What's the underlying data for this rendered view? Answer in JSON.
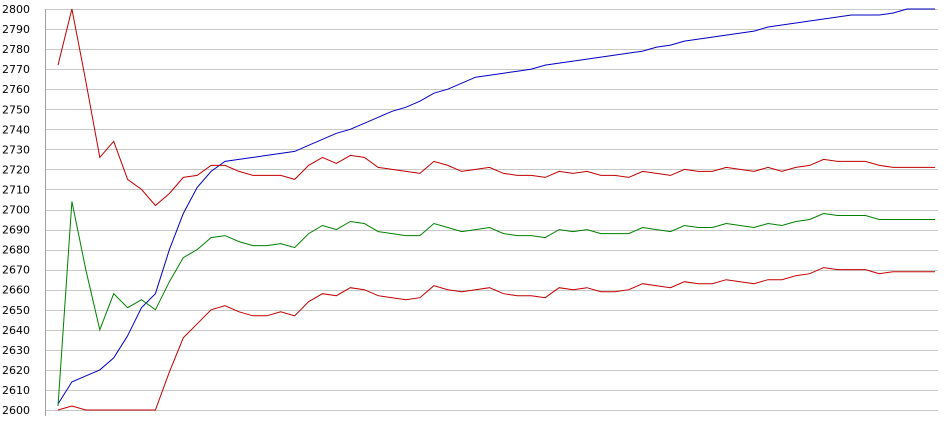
{
  "chart_data": {
    "type": "line",
    "title": "",
    "xlabel": "",
    "ylabel": "",
    "ylim": [
      2600,
      2800
    ],
    "grid": true,
    "legend": "none",
    "y_ticks": [
      "2600",
      "2610",
      "2620",
      "2630",
      "2640",
      "2650",
      "2660",
      "2670",
      "2680",
      "2690",
      "2700",
      "2710",
      "2720",
      "2730",
      "2740",
      "2750",
      "2760",
      "2770",
      "2780",
      "2790",
      "2800"
    ],
    "x": [
      1,
      2,
      3,
      4,
      5,
      6,
      7,
      8,
      9,
      10,
      11,
      12,
      13,
      14,
      15,
      16,
      17,
      18,
      19,
      20,
      21,
      22,
      23,
      24,
      25,
      26,
      27,
      28,
      29,
      30,
      31,
      32,
      33,
      34,
      35,
      36,
      37,
      38,
      39,
      40,
      41,
      42,
      43,
      44,
      45,
      46,
      47,
      48,
      49,
      50,
      51,
      52,
      53,
      54,
      55,
      56,
      57,
      58,
      59,
      60,
      61,
      62,
      63,
      64
    ],
    "series": [
      {
        "color": "#0000c0",
        "values": [
          2603,
          2614,
          2617,
          2620,
          2626,
          2637,
          2651,
          2658,
          2680,
          2698,
          2711,
          2719,
          2724,
          2725,
          2726,
          2727,
          2728,
          2729,
          2732,
          2735,
          2738,
          2740,
          2743,
          2746,
          2749,
          2751,
          2754,
          2758,
          2760,
          2763,
          2766,
          2767,
          2768,
          2769,
          2770,
          2772,
          2773,
          2774,
          2775,
          2776,
          2777,
          2778,
          2779,
          2781,
          2782,
          2784,
          2785,
          2786,
          2787,
          2788,
          2789,
          2791,
          2792,
          2793,
          2794,
          2795,
          2796,
          2797,
          2797,
          2797,
          2798,
          2800,
          2800,
          2800
        ]
      },
      {
        "color": "#c00000",
        "values": [
          2772,
          2800,
          2764,
          2726,
          2734,
          2715,
          2710,
          2702,
          2708,
          2716,
          2717,
          2722,
          2722,
          2719,
          2717,
          2717,
          2717,
          2715,
          2722,
          2726,
          2723,
          2727,
          2726,
          2721,
          2720,
          2719,
          2718,
          2724,
          2722,
          2719,
          2720,
          2721,
          2718,
          2717,
          2717,
          2716,
          2719,
          2718,
          2719,
          2717,
          2717,
          2716,
          2719,
          2718,
          2717,
          2720,
          2719,
          2719,
          2721,
          2720,
          2719,
          2721,
          2719,
          2721,
          2722,
          2725,
          2724,
          2724,
          2724,
          2722,
          2721,
          2721,
          2721,
          2721
        ]
      },
      {
        "color": "#008000",
        "values": [
          2602,
          2704,
          2670,
          2640,
          2658,
          2651,
          2655,
          2650,
          2664,
          2676,
          2680,
          2686,
          2687,
          2684,
          2682,
          2682,
          2683,
          2681,
          2688,
          2692,
          2690,
          2694,
          2693,
          2689,
          2688,
          2687,
          2687,
          2693,
          2691,
          2689,
          2690,
          2691,
          2688,
          2687,
          2687,
          2686,
          2690,
          2689,
          2690,
          2688,
          2688,
          2688,
          2691,
          2690,
          2689,
          2692,
          2691,
          2691,
          2693,
          2692,
          2691,
          2693,
          2692,
          2694,
          2695,
          2698,
          2697,
          2697,
          2697,
          2695,
          2695,
          2695,
          2695,
          2695
        ]
      },
      {
        "color": "#c00000",
        "values": [
          2600,
          2602,
          2600,
          2600,
          2600,
          2600,
          2600,
          2600,
          2619,
          2636,
          2643,
          2650,
          2652,
          2649,
          2647,
          2647,
          2649,
          2647,
          2654,
          2658,
          2657,
          2661,
          2660,
          2657,
          2656,
          2655,
          2656,
          2662,
          2660,
          2659,
          2660,
          2661,
          2658,
          2657,
          2657,
          2656,
          2661,
          2660,
          2661,
          2659,
          2659,
          2660,
          2663,
          2662,
          2661,
          2664,
          2663,
          2663,
          2665,
          2664,
          2663,
          2665,
          2665,
          2667,
          2668,
          2671,
          2670,
          2670,
          2670,
          2668,
          2669,
          2669,
          2669,
          2669
        ]
      }
    ]
  }
}
